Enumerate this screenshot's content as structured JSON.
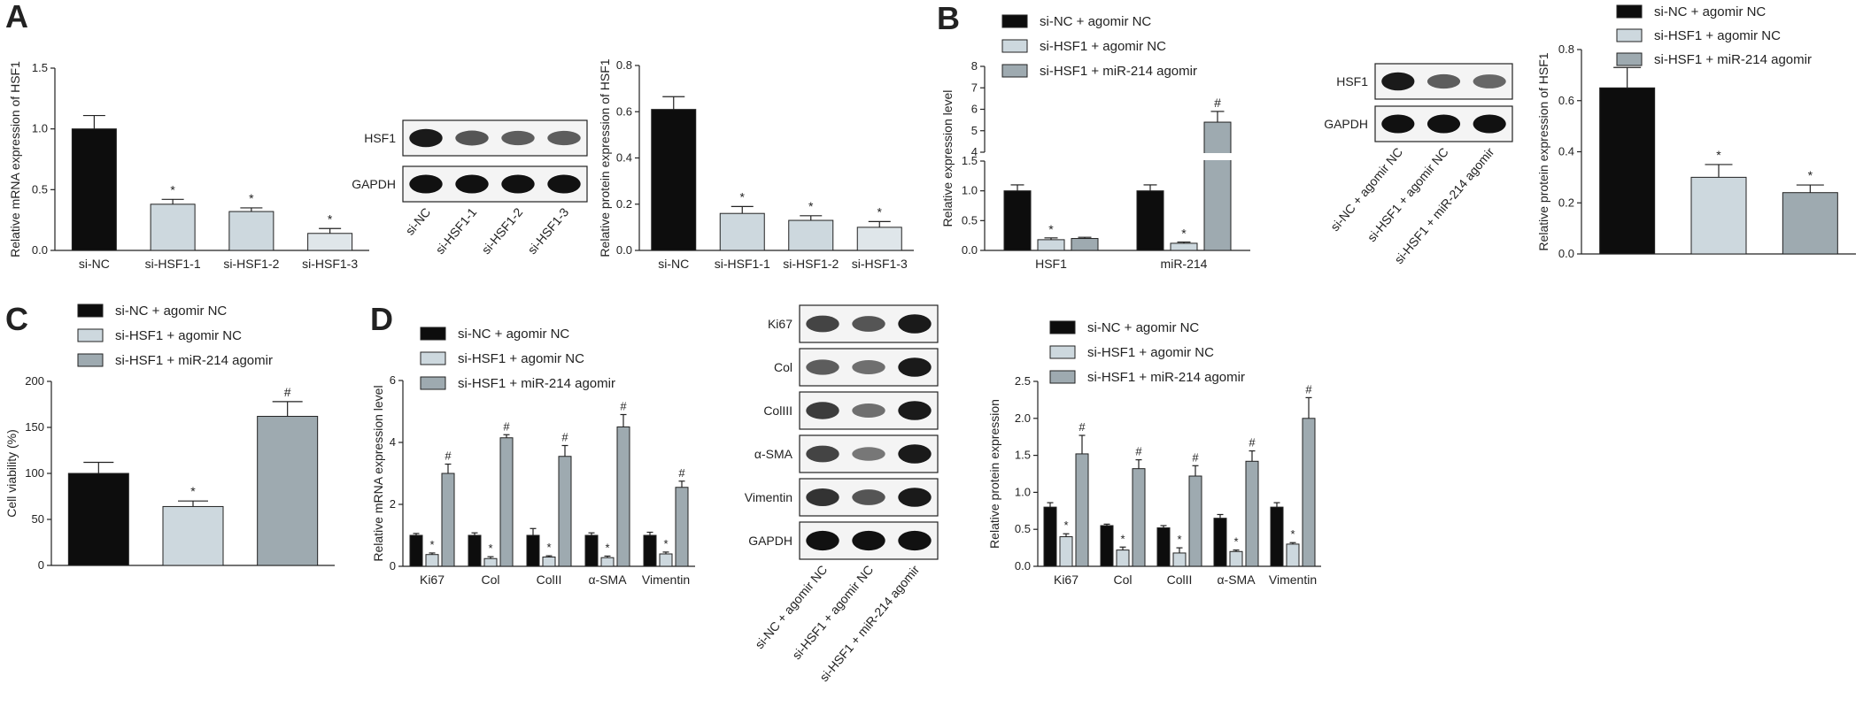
{
  "panel_labels": {
    "a": "A",
    "b": "B",
    "c": "C",
    "d": "D"
  },
  "colors": {
    "black": "#0d0d0d",
    "light": "#cdd8de",
    "gray": "#9eaab0",
    "lighter": "#dfe6ea"
  },
  "charts": {
    "a1": {
      "type": "bar",
      "ylabel": "Relative mRNA expression of HSF1",
      "categories": [
        "si-NC",
        "si-HSF1-1",
        "si-HSF1-2",
        "si-HSF1-3"
      ],
      "values": [
        1.0,
        0.38,
        0.32,
        0.14
      ],
      "errors": [
        0.11,
        0.04,
        0.03,
        0.04
      ],
      "marks": [
        "",
        "*",
        "*",
        "*"
      ],
      "ylim": [
        0,
        1.5
      ],
      "yticks": [
        "0.0",
        "0.5",
        "1.0",
        "1.5"
      ]
    },
    "a2": {
      "type": "bar",
      "ylabel": "Relative protein expression of HSF1",
      "categories": [
        "si-NC",
        "si-HSF1-1",
        "si-HSF1-2",
        "si-HSF1-3"
      ],
      "values": [
        0.61,
        0.16,
        0.13,
        0.1
      ],
      "errors": [
        0.055,
        0.03,
        0.02,
        0.025
      ],
      "marks": [
        "",
        "*",
        "*",
        "*"
      ],
      "ylim": [
        0,
        0.8
      ],
      "yticks": [
        "0.0",
        "0.2",
        "0.4",
        "0.6",
        "0.8"
      ]
    },
    "b1": {
      "type": "bar",
      "ylabel": "Relative expression level",
      "categories": [
        "HSF1",
        "miR-214"
      ],
      "legend": [
        "si-NC + agomir NC",
        "si-HSF1 + agomir NC",
        "si-HSF1 + miR-214 agomir"
      ],
      "series": [
        {
          "values": [
            1.0,
            1.0
          ],
          "errors": [
            0.1,
            0.1
          ],
          "marks": [
            "",
            ""
          ]
        },
        {
          "values": [
            0.18,
            0.12
          ],
          "errors": [
            0.03,
            0.02
          ],
          "marks": [
            "*",
            "*"
          ]
        },
        {
          "values": [
            0.2,
            5.4
          ],
          "errors": [
            0.02,
            0.5
          ],
          "marks": [
            "",
            "#"
          ]
        }
      ],
      "yticks_low": [
        "0.0",
        "0.5",
        "1.0",
        "1.5"
      ],
      "yticks_high": [
        "4",
        "5",
        "6",
        "7",
        "8"
      ]
    },
    "b2": {
      "type": "bar",
      "ylabel": "Relative protein expression of  HSF1",
      "legend": [
        "si-NC + agomir NC",
        "si-HSF1 + agomir NC",
        "si-HSF1 + miR-214 agomir"
      ],
      "values": [
        0.65,
        0.3,
        0.24
      ],
      "errors": [
        0.08,
        0.05,
        0.03
      ],
      "marks": [
        "",
        "*",
        "*"
      ],
      "ylim": [
        0,
        0.8
      ],
      "yticks": [
        "0.0",
        "0.2",
        "0.4",
        "0.6",
        "0.8"
      ]
    },
    "c": {
      "type": "bar",
      "ylabel": "Cell viability (%)",
      "legend": [
        "si-NC + agomir NC",
        "si-HSF1 + agomir NC",
        "si-HSF1 + miR-214 agomir"
      ],
      "values": [
        100,
        64,
        162
      ],
      "errors": [
        12,
        6,
        16
      ],
      "marks": [
        "",
        "*",
        "#"
      ],
      "ylim": [
        0,
        200
      ],
      "yticks": [
        "0",
        "50",
        "100",
        "150",
        "200"
      ]
    },
    "d1": {
      "type": "bar",
      "ylabel": "Relative mRNA expression level",
      "categories": [
        "Ki67",
        "Col",
        "ColII",
        "α-SMA",
        "Vimentin"
      ],
      "legend": [
        "si-NC + agomir NC",
        "si-HSF1 + agomir NC",
        "si-HSF1 + miR-214 agomir"
      ],
      "series": [
        {
          "values": [
            1.0,
            1.0,
            1.0,
            1.0,
            1.0
          ],
          "errors": [
            0.06,
            0.08,
            0.22,
            0.08,
            0.1
          ],
          "marks": [
            "",
            "",
            "",
            "",
            ""
          ]
        },
        {
          "values": [
            0.38,
            0.25,
            0.3,
            0.28,
            0.4
          ],
          "errors": [
            0.05,
            0.06,
            0.04,
            0.05,
            0.06
          ],
          "marks": [
            "*",
            "*",
            "*",
            "*",
            "*"
          ]
        },
        {
          "values": [
            3.0,
            4.15,
            3.55,
            4.5,
            2.55
          ],
          "errors": [
            0.3,
            0.1,
            0.35,
            0.4,
            0.2
          ],
          "marks": [
            "#",
            "#",
            "#",
            "#",
            "#"
          ]
        }
      ],
      "ylim": [
        0,
        6
      ],
      "yticks": [
        "0",
        "2",
        "4",
        "6"
      ]
    },
    "d2": {
      "type": "bar",
      "ylabel": "Relative protein expression",
      "categories": [
        "Ki67",
        "Col",
        "ColII",
        "α-SMA",
        "Vimentin"
      ],
      "legend": [
        "si-NC + agomir NC",
        "si-HSF1 + agomir NC",
        "si-HSF1 + miR-214 agomir"
      ],
      "series": [
        {
          "values": [
            0.8,
            0.55,
            0.52,
            0.65,
            0.8
          ],
          "errors": [
            0.06,
            0.02,
            0.03,
            0.05,
            0.06
          ],
          "marks": [
            "",
            "",
            "",
            "",
            ""
          ]
        },
        {
          "values": [
            0.4,
            0.22,
            0.18,
            0.2,
            0.3
          ],
          "errors": [
            0.04,
            0.04,
            0.07,
            0.02,
            0.02
          ],
          "marks": [
            "*",
            "*",
            "*",
            "*",
            "*"
          ]
        },
        {
          "values": [
            1.52,
            1.32,
            1.22,
            1.42,
            2.0
          ],
          "errors": [
            0.25,
            0.12,
            0.14,
            0.14,
            0.28
          ],
          "marks": [
            "#",
            "#",
            "#",
            "#",
            "#"
          ]
        }
      ],
      "ylim": [
        0,
        2.5
      ],
      "yticks": [
        "0.0",
        "0.5",
        "1.0",
        "1.5",
        "2.0",
        "2.5"
      ]
    }
  },
  "blots": {
    "a": {
      "rows": [
        "HSF1",
        "GAPDH"
      ],
      "lanes": [
        "si-NC",
        "si-HSF1-1",
        "si-HSF1-2",
        "si-HSF1-3"
      ]
    },
    "b": {
      "rows": [
        "HSF1",
        "GAPDH"
      ],
      "lanes": [
        "si-NC + agomir NC",
        "si-HSF1 + agomir NC",
        "si-HSF1 + miR-214 agomir"
      ]
    },
    "d": {
      "rows": [
        "Ki67",
        "Col",
        "ColIII",
        "α-SMA",
        "Vimentin",
        "GAPDH"
      ],
      "lanes": [
        "si-NC + agomir NC",
        "si-HSF1 + agomir NC",
        "si-HSF1 + miR-214 agomir"
      ]
    }
  },
  "chart_data": [
    {
      "type": "bar",
      "ylabel": "Relative mRNA expression of HSF1",
      "categories": [
        "si-NC",
        "si-HSF1-1",
        "si-HSF1-2",
        "si-HSF1-3"
      ],
      "values": [
        1.0,
        0.38,
        0.32,
        0.14
      ],
      "ylim": [
        0,
        1.5
      ]
    },
    {
      "type": "bar",
      "ylabel": "Relative protein expression of HSF1",
      "categories": [
        "si-NC",
        "si-HSF1-1",
        "si-HSF1-2",
        "si-HSF1-3"
      ],
      "values": [
        0.61,
        0.16,
        0.13,
        0.1
      ],
      "ylim": [
        0,
        0.8
      ]
    },
    {
      "type": "bar",
      "ylabel": "Relative expression level",
      "categories": [
        "HSF1",
        "miR-214"
      ],
      "series": [
        {
          "name": "si-NC + agomir NC",
          "values": [
            1.0,
            1.0
          ]
        },
        {
          "name": "si-HSF1 + agomir NC",
          "values": [
            0.18,
            0.12
          ]
        },
        {
          "name": "si-HSF1 + miR-214 agomir",
          "values": [
            0.2,
            5.4
          ]
        }
      ]
    },
    {
      "type": "bar",
      "ylabel": "Relative protein expression of  HSF1",
      "categories": [
        "si-NC + agomir NC",
        "si-HSF1 + agomir NC",
        "si-HSF1 + miR-214 agomir"
      ],
      "values": [
        0.65,
        0.3,
        0.24
      ],
      "ylim": [
        0,
        0.8
      ]
    },
    {
      "type": "bar",
      "ylabel": "Cell viability (%)",
      "categories": [
        "si-NC + agomir NC",
        "si-HSF1 + agomir NC",
        "si-HSF1 + miR-214 agomir"
      ],
      "values": [
        100,
        64,
        162
      ],
      "ylim": [
        0,
        200
      ]
    },
    {
      "type": "bar",
      "ylabel": "Relative mRNA expression level",
      "categories": [
        "Ki67",
        "Col",
        "ColII",
        "α-SMA",
        "Vimentin"
      ],
      "series": [
        {
          "name": "si-NC + agomir NC",
          "values": [
            1.0,
            1.0,
            1.0,
            1.0,
            1.0
          ]
        },
        {
          "name": "si-HSF1 + agomir NC",
          "values": [
            0.38,
            0.25,
            0.3,
            0.28,
            0.4
          ]
        },
        {
          "name": "si-HSF1 + miR-214 agomir",
          "values": [
            3.0,
            4.15,
            3.55,
            4.5,
            2.55
          ]
        }
      ],
      "ylim": [
        0,
        6
      ]
    },
    {
      "type": "bar",
      "ylabel": "Relative protein expression",
      "categories": [
        "Ki67",
        "Col",
        "ColII",
        "α-SMA",
        "Vimentin"
      ],
      "series": [
        {
          "name": "si-NC + agomir NC",
          "values": [
            0.8,
            0.55,
            0.52,
            0.65,
            0.8
          ]
        },
        {
          "name": "si-HSF1 + agomir NC",
          "values": [
            0.4,
            0.22,
            0.18,
            0.2,
            0.3
          ]
        },
        {
          "name": "si-HSF1 + miR-214 agomir",
          "values": [
            1.52,
            1.32,
            1.22,
            1.42,
            2.0
          ]
        }
      ],
      "ylim": [
        0,
        2.5
      ]
    }
  ]
}
